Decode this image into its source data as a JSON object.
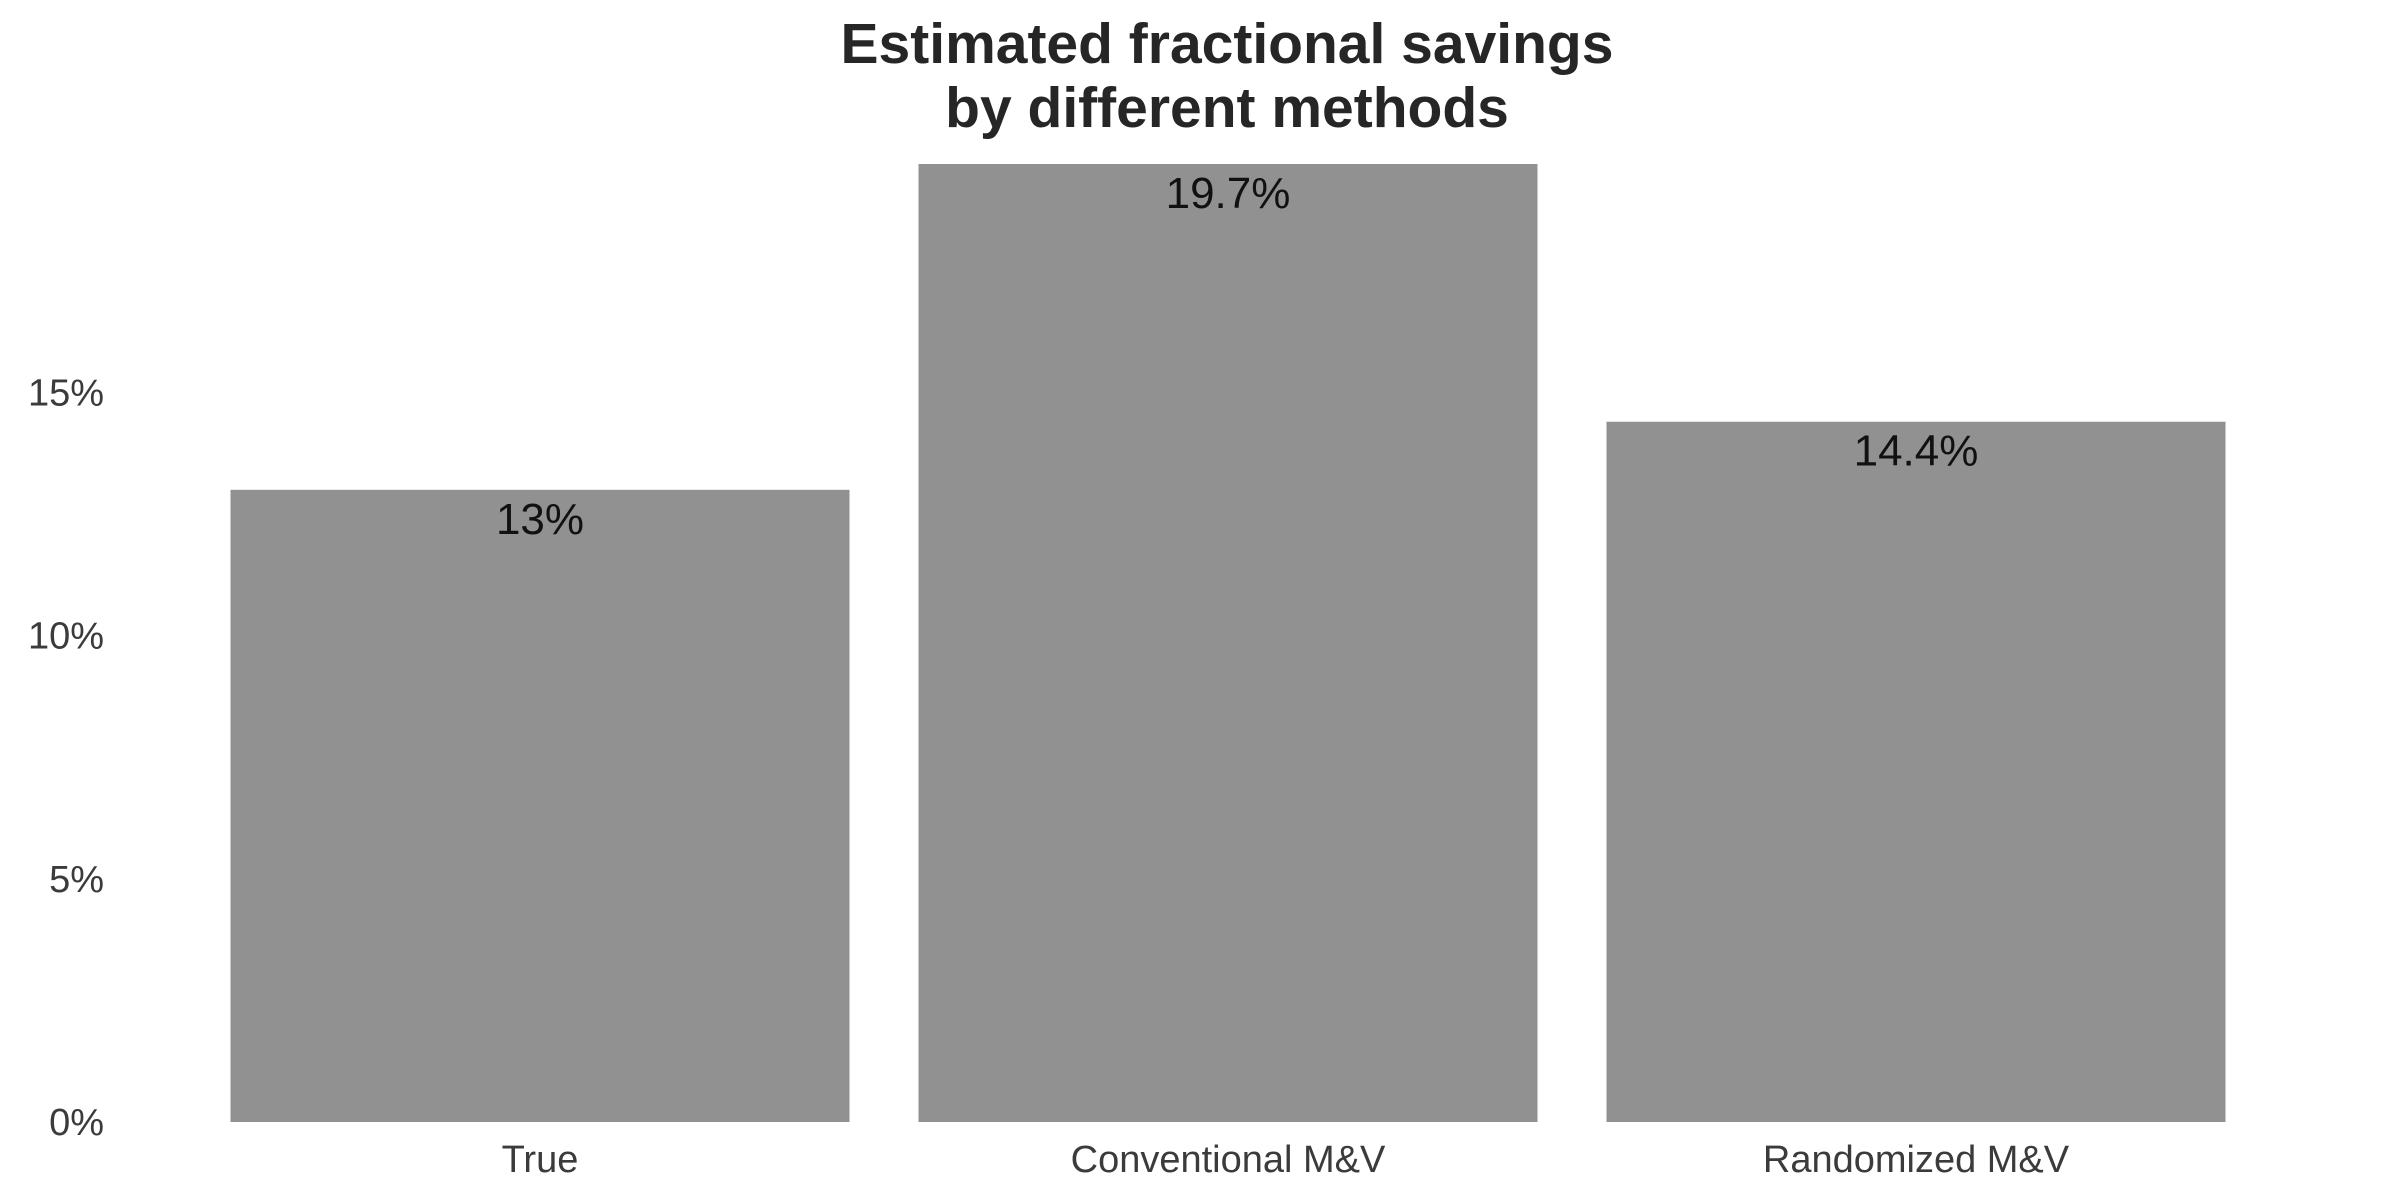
{
  "chart_data": {
    "type": "bar",
    "title": "Estimated fractional savings\nby different methods",
    "title_lines": [
      "Estimated fractional savings",
      "by different methods"
    ],
    "categories": [
      "True",
      "Conventional M&V",
      "Randomized M&V"
    ],
    "values": [
      13.0,
      19.7,
      14.4
    ],
    "value_labels": [
      "13%",
      "19.7%",
      "14.4%"
    ],
    "xlabel": "",
    "ylabel": "",
    "ylim": [
      0,
      19.7
    ],
    "yticks": [
      0,
      5,
      10,
      15
    ],
    "ytick_labels": [
      "0%",
      "5%",
      "10%",
      "15%"
    ],
    "grid": false,
    "legend": "none",
    "bar_color": "#919191"
  }
}
